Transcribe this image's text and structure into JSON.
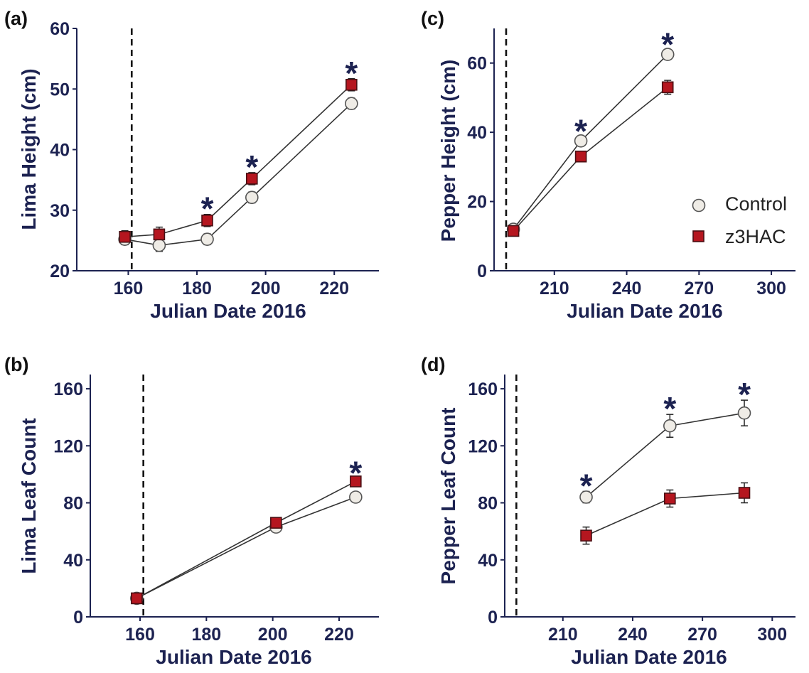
{
  "colors": {
    "axis": "#1c2251",
    "text": "#1c2251",
    "control_fill": "#efece6",
    "control_stroke": "#555555",
    "treatment_fill": "#b5161f",
    "treatment_stroke": "#4a1014",
    "line": "#333333"
  },
  "legend": {
    "control_label": "Control",
    "treatment_label": "z3HAC"
  },
  "chart_data": [
    {
      "id": "a",
      "panel_label": "(a)",
      "type": "line",
      "title": "",
      "xlabel": "Julian Date 2016",
      "ylabel": "Lima Height (cm)",
      "xlim": [
        145,
        233
      ],
      "ylim": [
        20,
        60
      ],
      "xticks": [
        160,
        180,
        200,
        220
      ],
      "yticks": [
        20,
        30,
        40,
        50,
        60
      ],
      "reference_line_x": 161,
      "series": [
        {
          "name": "Control",
          "x": [
            159,
            169,
            183,
            196,
            225
          ],
          "values": [
            25.2,
            24.2,
            25.2,
            32.1,
            47.6
          ],
          "errors": [
            0.9,
            1.0,
            0.9,
            0.9,
            0.9
          ]
        },
        {
          "name": "z3HAC",
          "x": [
            159,
            169,
            183,
            196,
            225
          ],
          "values": [
            25.6,
            26.0,
            28.3,
            35.2,
            50.7
          ],
          "errors": [
            1.0,
            1.2,
            1.0,
            1.0,
            1.0
          ]
        }
      ],
      "significance_x": [
        183,
        196,
        225
      ]
    },
    {
      "id": "b",
      "panel_label": "(b)",
      "type": "line",
      "title": "",
      "xlabel": "Julian Date 2016",
      "ylabel": "Lima Leaf Count",
      "xlim": [
        145,
        232
      ],
      "ylim": [
        0,
        170
      ],
      "xticks": [
        160,
        180,
        200,
        220
      ],
      "yticks": [
        0,
        40,
        80,
        120,
        160
      ],
      "reference_line_x": 161,
      "series": [
        {
          "name": "Control",
          "x": [
            159,
            201,
            225
          ],
          "values": [
            13,
            63,
            84
          ],
          "errors": [
            2,
            2,
            2
          ]
        },
        {
          "name": "z3HAC",
          "x": [
            159,
            201,
            225
          ],
          "values": [
            13,
            66,
            95
          ],
          "errors": [
            2,
            2,
            2
          ]
        }
      ],
      "significance_x": [
        225
      ]
    },
    {
      "id": "c",
      "panel_label": "(c)",
      "type": "line",
      "title": "",
      "xlabel": "Julian Date 2016",
      "ylabel": "Pepper Height (cm)",
      "xlim": [
        185,
        310
      ],
      "ylim": [
        0,
        70
      ],
      "xticks": [
        210,
        240,
        270,
        300
      ],
      "yticks": [
        0,
        20,
        40,
        60
      ],
      "reference_line_x": 190,
      "series": [
        {
          "name": "Control",
          "x": [
            193,
            221,
            257
          ],
          "values": [
            12.0,
            37.5,
            62.5
          ],
          "errors": [
            0.8,
            1.2,
            1.2
          ]
        },
        {
          "name": "z3HAC",
          "x": [
            193,
            221,
            257
          ],
          "values": [
            11.5,
            33.0,
            53.0
          ],
          "errors": [
            0.8,
            1.0,
            2.0
          ]
        }
      ],
      "significance_x": [
        221,
        257
      ]
    },
    {
      "id": "d",
      "panel_label": "(d)",
      "type": "line",
      "title": "",
      "xlabel": "Julian Date 2016",
      "ylabel": "Pepper Leaf Count",
      "xlim": [
        185,
        310
      ],
      "ylim": [
        0,
        170
      ],
      "xticks": [
        210,
        240,
        270,
        300
      ],
      "yticks": [
        0,
        40,
        80,
        120,
        160
      ],
      "reference_line_x": 190,
      "series": [
        {
          "name": "Control",
          "x": [
            220,
            256,
            288
          ],
          "values": [
            84,
            134,
            143
          ],
          "errors": [
            4,
            8,
            9
          ]
        },
        {
          "name": "z3HAC",
          "x": [
            220,
            256,
            288
          ],
          "values": [
            57,
            83,
            87
          ],
          "errors": [
            6,
            6,
            7
          ]
        }
      ],
      "significance_x": [
        220,
        256,
        288
      ]
    }
  ]
}
